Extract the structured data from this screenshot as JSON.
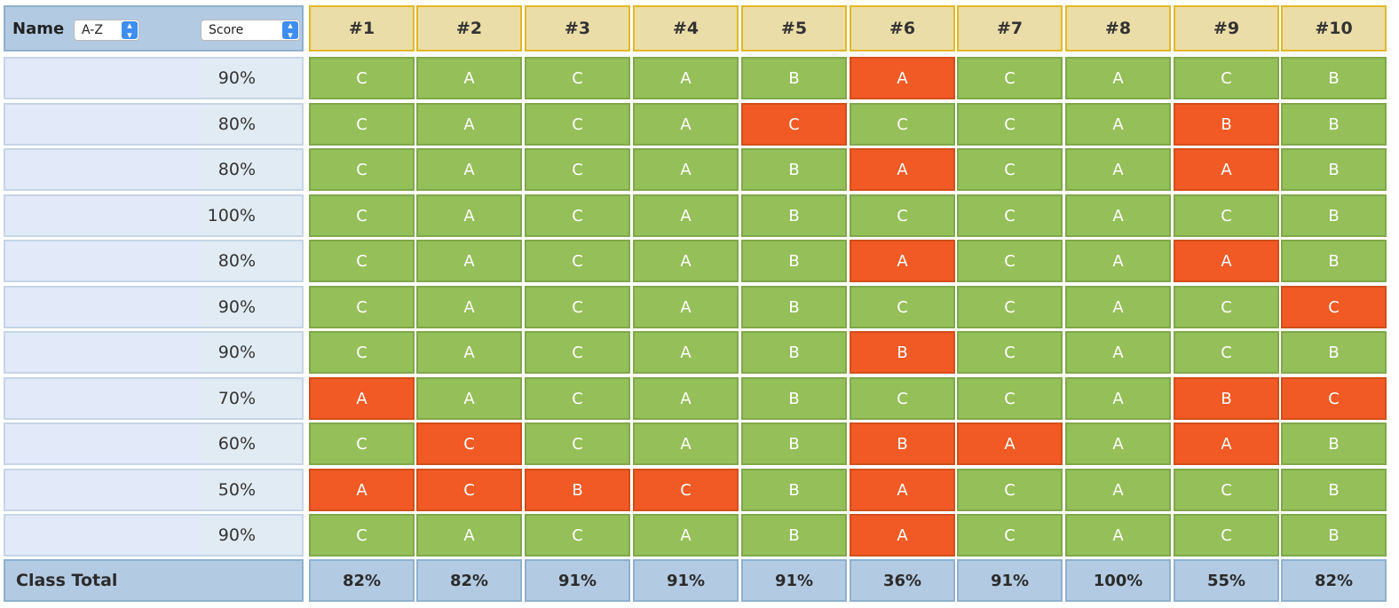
{
  "header": {
    "name_label": "Name",
    "name_sort": "A-Z",
    "score_sort": "Score",
    "questions": [
      "#1",
      "#2",
      "#3",
      "#4",
      "#5",
      "#6",
      "#7",
      "#8",
      "#9",
      "#10"
    ]
  },
  "rows": [
    {
      "score": "90%",
      "answers": [
        "C",
        "A",
        "C",
        "A",
        "B",
        "A",
        "C",
        "A",
        "C",
        "B"
      ],
      "wrong": [
        5
      ]
    },
    {
      "score": "80%",
      "answers": [
        "C",
        "A",
        "C",
        "A",
        "C",
        "C",
        "C",
        "A",
        "B",
        "B"
      ],
      "wrong": [
        4,
        8
      ]
    },
    {
      "score": "80%",
      "answers": [
        "C",
        "A",
        "C",
        "A",
        "B",
        "A",
        "C",
        "A",
        "A",
        "B"
      ],
      "wrong": [
        5,
        8
      ]
    },
    {
      "score": "100%",
      "answers": [
        "C",
        "A",
        "C",
        "A",
        "B",
        "C",
        "C",
        "A",
        "C",
        "B"
      ],
      "wrong": []
    },
    {
      "score": "80%",
      "answers": [
        "C",
        "A",
        "C",
        "A",
        "B",
        "A",
        "C",
        "A",
        "A",
        "B"
      ],
      "wrong": [
        5,
        8
      ]
    },
    {
      "score": "90%",
      "answers": [
        "C",
        "A",
        "C",
        "A",
        "B",
        "C",
        "C",
        "A",
        "C",
        "C"
      ],
      "wrong": [
        9
      ]
    },
    {
      "score": "90%",
      "answers": [
        "C",
        "A",
        "C",
        "A",
        "B",
        "B",
        "C",
        "A",
        "C",
        "B"
      ],
      "wrong": [
        5
      ]
    },
    {
      "score": "70%",
      "answers": [
        "A",
        "A",
        "C",
        "A",
        "B",
        "C",
        "C",
        "A",
        "B",
        "C"
      ],
      "wrong": [
        0,
        8,
        9
      ]
    },
    {
      "score": "60%",
      "answers": [
        "C",
        "C",
        "C",
        "A",
        "B",
        "B",
        "A",
        "A",
        "A",
        "B"
      ],
      "wrong": [
        1,
        5,
        6,
        8
      ]
    },
    {
      "score": "50%",
      "answers": [
        "A",
        "C",
        "B",
        "C",
        "B",
        "A",
        "C",
        "A",
        "C",
        "B"
      ],
      "wrong": [
        0,
        1,
        2,
        3,
        5
      ]
    },
    {
      "score": "90%",
      "answers": [
        "C",
        "A",
        "C",
        "A",
        "B",
        "A",
        "C",
        "A",
        "C",
        "B"
      ],
      "wrong": [
        5
      ]
    }
  ],
  "footer": {
    "label": "Class Total",
    "totals": [
      "82%",
      "82%",
      "91%",
      "91%",
      "91%",
      "36%",
      "91%",
      "100%",
      "55%",
      "82%"
    ]
  },
  "colors": {
    "correct": "#95bf58",
    "incorrect": "#f15a24",
    "question_header": "#ebdda7",
    "left_header": "#b3cbe2"
  },
  "icons": {
    "sort_select_arrows": "updown-chevron-icon"
  }
}
